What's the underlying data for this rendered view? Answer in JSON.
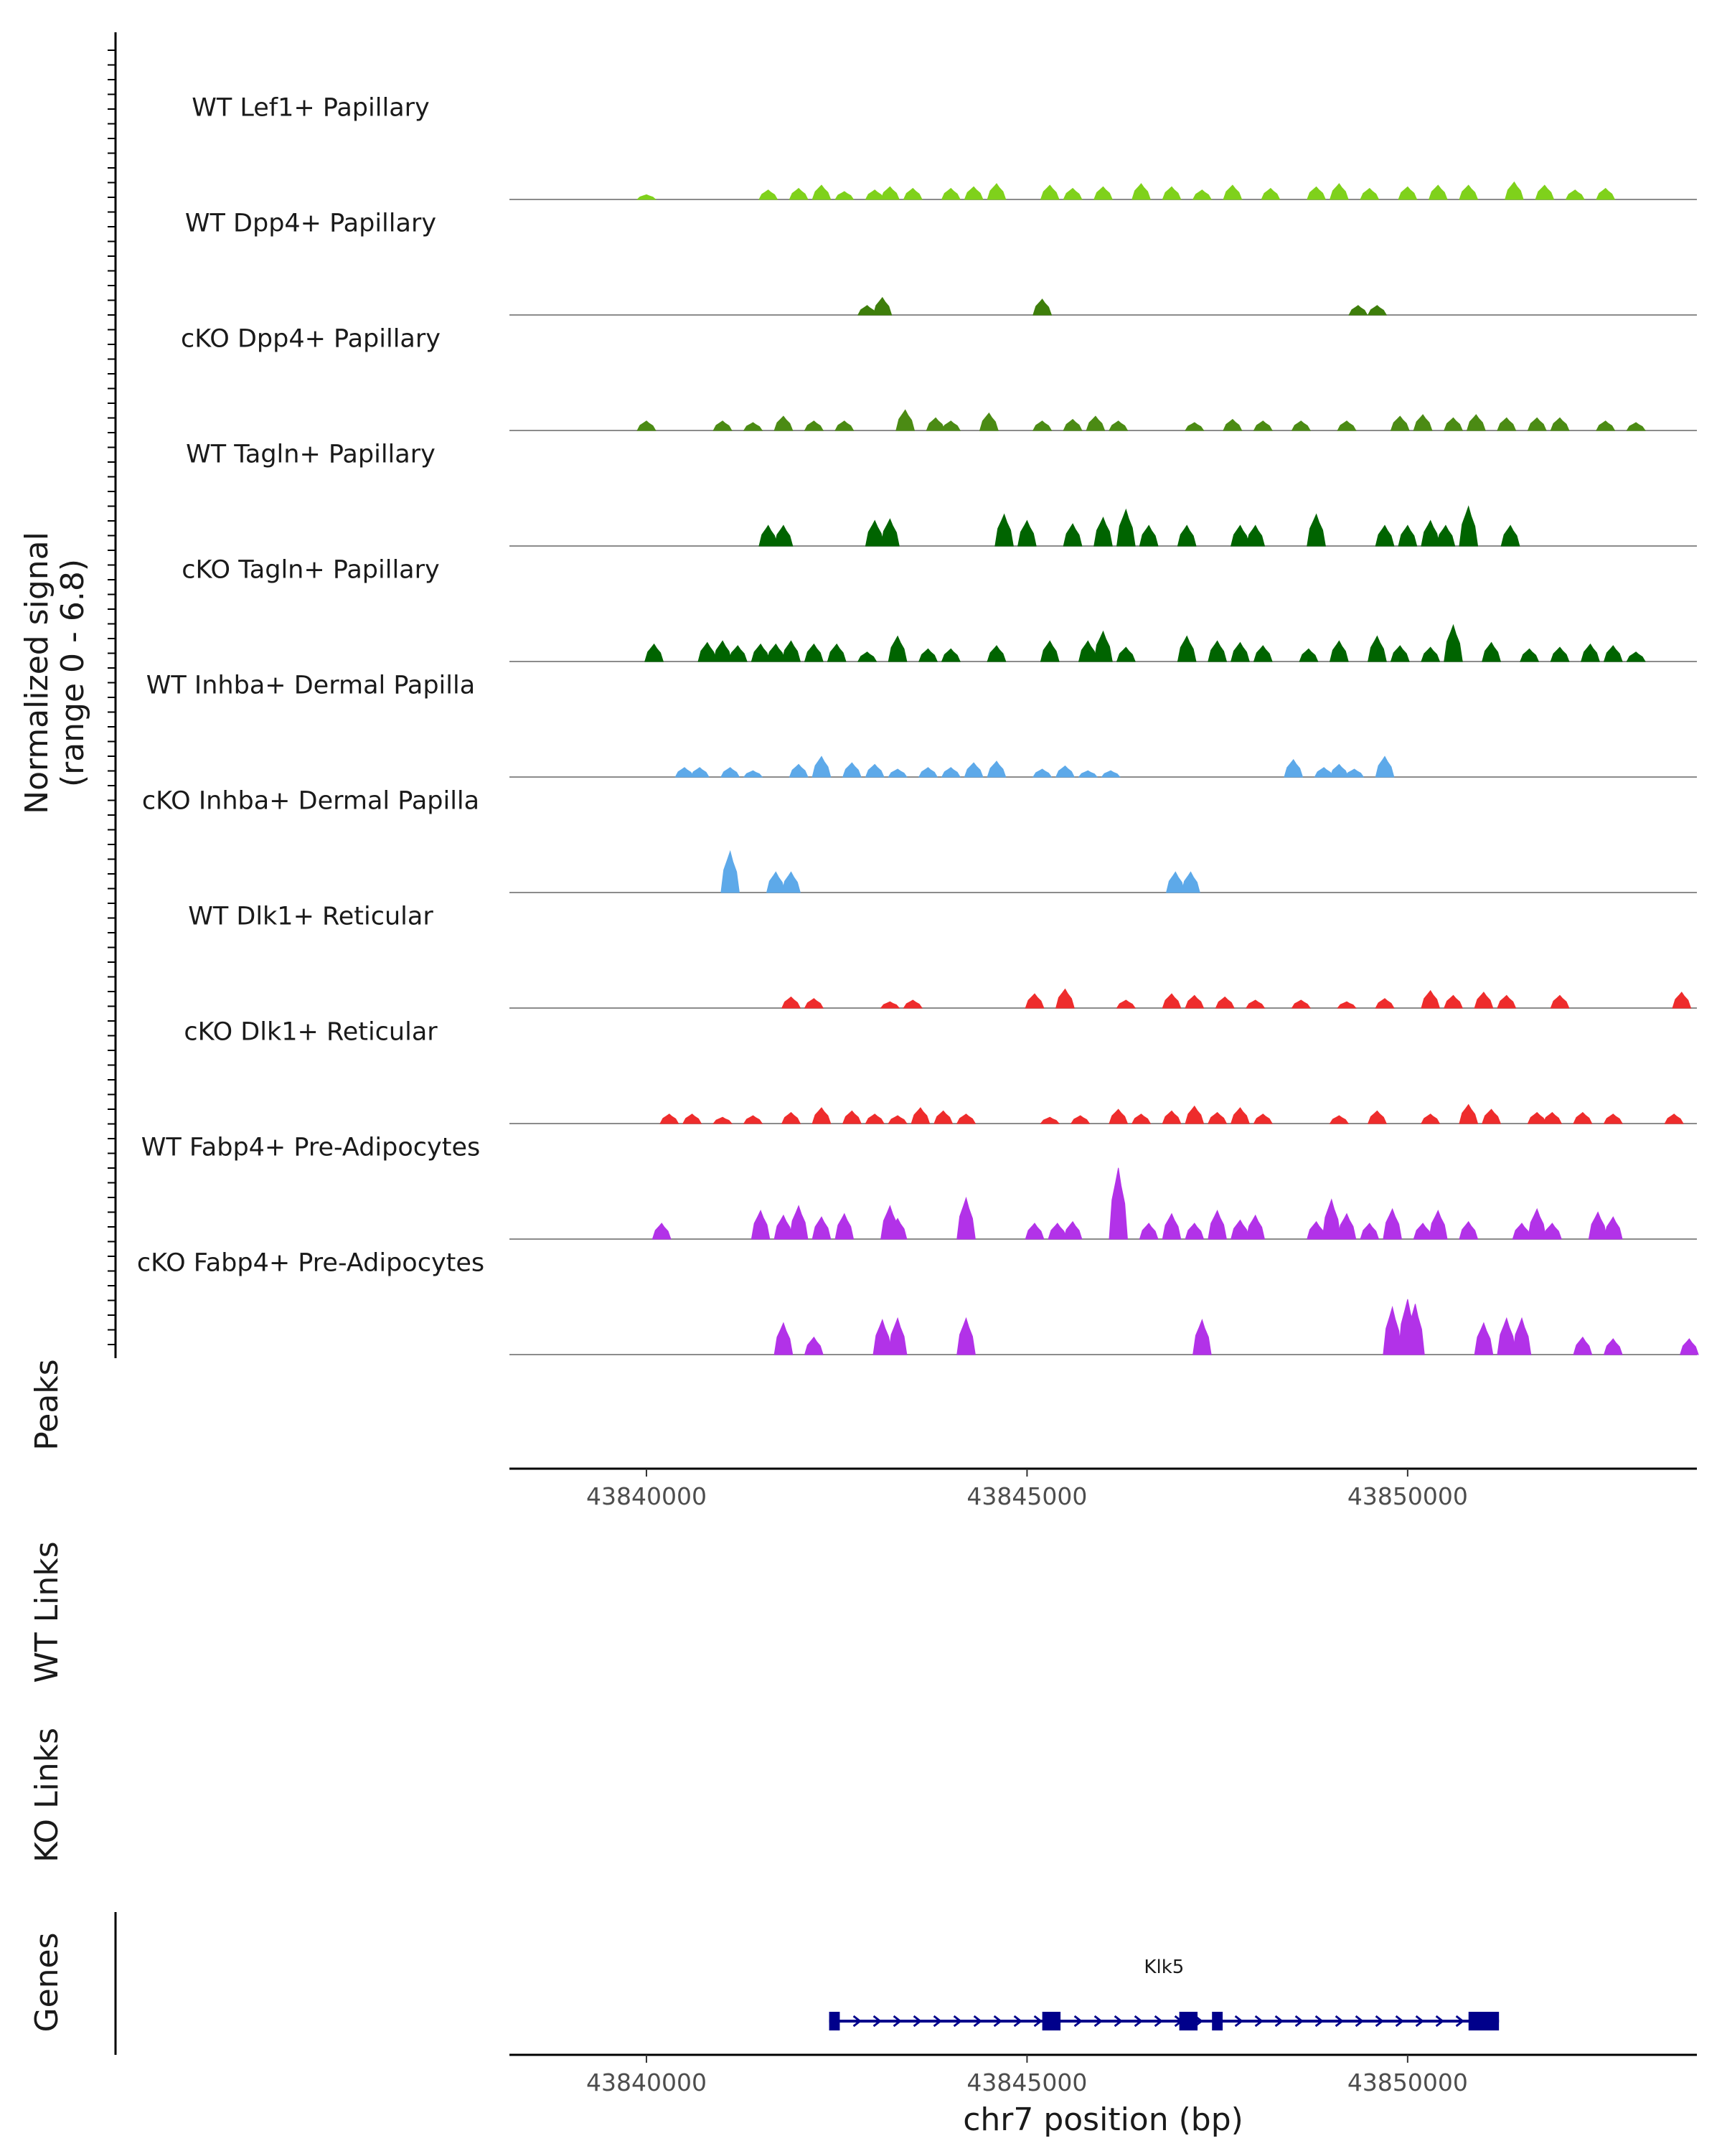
{
  "chart_data": {
    "type": "area",
    "chromosome": "chr7",
    "xlabel": "chr7 position (bp)",
    "xlim": [
      43838200,
      43853800
    ],
    "xticks": [
      43840000,
      43845000,
      43850000
    ],
    "xtick_labels": [
      "43840000",
      "43845000",
      "43850000"
    ],
    "ylabel_lines": [
      "Normalized signal",
      "(range 0 - 6.8)"
    ],
    "ylim": [
      0,
      6.8
    ],
    "grid": false,
    "series": [
      {
        "name": "WT Lef1+ Papillary",
        "color": "#7FD11B",
        "peaks": [
          [
            43840000,
            0.3
          ],
          [
            43841600,
            0.6
          ],
          [
            43842000,
            0.7
          ],
          [
            43842300,
            0.9
          ],
          [
            43842600,
            0.5
          ],
          [
            43843000,
            0.6
          ],
          [
            43843200,
            0.8
          ],
          [
            43843500,
            0.7
          ],
          [
            43844000,
            0.7
          ],
          [
            43844300,
            0.8
          ],
          [
            43844600,
            1.0
          ],
          [
            43845300,
            0.9
          ],
          [
            43845600,
            0.7
          ],
          [
            43846000,
            0.8
          ],
          [
            43846500,
            1.0
          ],
          [
            43846900,
            0.8
          ],
          [
            43847300,
            0.6
          ],
          [
            43847700,
            0.9
          ],
          [
            43848200,
            0.7
          ],
          [
            43848800,
            0.8
          ],
          [
            43849100,
            1.0
          ],
          [
            43849500,
            0.7
          ],
          [
            43850000,
            0.8
          ],
          [
            43850400,
            0.9
          ],
          [
            43850800,
            0.9
          ],
          [
            43851400,
            1.1
          ],
          [
            43851800,
            0.9
          ],
          [
            43852200,
            0.6
          ],
          [
            43852600,
            0.7
          ]
        ]
      },
      {
        "name": "WT Dpp4+ Papillary",
        "color": "#3E7E0B",
        "peaks": [
          [
            43842900,
            0.6
          ],
          [
            43843100,
            1.1
          ],
          [
            43845200,
            1.0
          ],
          [
            43849350,
            0.6
          ],
          [
            43849600,
            0.6
          ]
        ]
      },
      {
        "name": "cKO Dpp4+ Papillary",
        "color": "#4B8B14",
        "peaks": [
          [
            43840000,
            0.6
          ],
          [
            43841000,
            0.6
          ],
          [
            43841400,
            0.5
          ],
          [
            43841800,
            0.9
          ],
          [
            43842200,
            0.6
          ],
          [
            43842600,
            0.6
          ],
          [
            43843400,
            1.3
          ],
          [
            43843800,
            0.8
          ],
          [
            43844000,
            0.6
          ],
          [
            43844500,
            1.1
          ],
          [
            43845200,
            0.6
          ],
          [
            43845600,
            0.7
          ],
          [
            43845900,
            0.9
          ],
          [
            43846200,
            0.6
          ],
          [
            43847200,
            0.5
          ],
          [
            43847700,
            0.7
          ],
          [
            43848100,
            0.6
          ],
          [
            43848600,
            0.6
          ],
          [
            43849200,
            0.6
          ],
          [
            43849900,
            0.9
          ],
          [
            43850200,
            1.0
          ],
          [
            43850600,
            0.8
          ],
          [
            43850900,
            1.0
          ],
          [
            43851300,
            0.8
          ],
          [
            43851700,
            0.8
          ],
          [
            43852000,
            0.8
          ],
          [
            43852600,
            0.6
          ],
          [
            43853000,
            0.5
          ]
        ]
      },
      {
        "name": "WT Tagln+ Papillary",
        "color": "#006400",
        "peaks": [
          [
            43841600,
            1.3
          ],
          [
            43841800,
            1.3
          ],
          [
            43843000,
            1.6
          ],
          [
            43843200,
            1.7
          ],
          [
            43844700,
            2.0
          ],
          [
            43845000,
            1.6
          ],
          [
            43845600,
            1.4
          ],
          [
            43846000,
            1.8
          ],
          [
            43846300,
            2.3
          ],
          [
            43846600,
            1.3
          ],
          [
            43847100,
            1.3
          ],
          [
            43847800,
            1.3
          ],
          [
            43848000,
            1.3
          ],
          [
            43848800,
            2.0
          ],
          [
            43849700,
            1.3
          ],
          [
            43850000,
            1.3
          ],
          [
            43850300,
            1.6
          ],
          [
            43850500,
            1.3
          ],
          [
            43850800,
            2.5
          ],
          [
            43851350,
            1.3
          ]
        ]
      },
      {
        "name": "cKO Tagln+ Papillary",
        "color": "#006400",
        "peaks": [
          [
            43840100,
            1.1
          ],
          [
            43840800,
            1.2
          ],
          [
            43841000,
            1.3
          ],
          [
            43841200,
            1.0
          ],
          [
            43841500,
            1.1
          ],
          [
            43841700,
            1.1
          ],
          [
            43841900,
            1.3
          ],
          [
            43842200,
            1.1
          ],
          [
            43842500,
            1.1
          ],
          [
            43842900,
            0.6
          ],
          [
            43843300,
            1.6
          ],
          [
            43843700,
            0.8
          ],
          [
            43844000,
            0.8
          ],
          [
            43844600,
            1.0
          ],
          [
            43845300,
            1.3
          ],
          [
            43845800,
            1.3
          ],
          [
            43846000,
            1.9
          ],
          [
            43846300,
            0.9
          ],
          [
            43847100,
            1.6
          ],
          [
            43847500,
            1.3
          ],
          [
            43847800,
            1.2
          ],
          [
            43848100,
            1.0
          ],
          [
            43848700,
            0.8
          ],
          [
            43849100,
            1.3
          ],
          [
            43849600,
            1.6
          ],
          [
            43849900,
            1.0
          ],
          [
            43850300,
            0.9
          ],
          [
            43850600,
            2.3
          ],
          [
            43851100,
            1.2
          ],
          [
            43851600,
            0.8
          ],
          [
            43852000,
            0.9
          ],
          [
            43852400,
            1.1
          ],
          [
            43852700,
            1.0
          ],
          [
            43853000,
            0.6
          ]
        ]
      },
      {
        "name": "WT Inhba+ Dermal Papilla",
        "color": "#5DA9E9",
        "peaks": [
          [
            43840500,
            0.6
          ],
          [
            43840700,
            0.6
          ],
          [
            43841100,
            0.6
          ],
          [
            43841400,
            0.4
          ],
          [
            43842000,
            0.8
          ],
          [
            43842300,
            1.3
          ],
          [
            43842700,
            0.9
          ],
          [
            43843000,
            0.8
          ],
          [
            43843300,
            0.5
          ],
          [
            43843700,
            0.6
          ],
          [
            43844000,
            0.6
          ],
          [
            43844300,
            0.9
          ],
          [
            43844600,
            1.0
          ],
          [
            43845200,
            0.5
          ],
          [
            43845500,
            0.7
          ],
          [
            43845800,
            0.4
          ],
          [
            43846100,
            0.4
          ],
          [
            43848500,
            1.1
          ],
          [
            43848900,
            0.6
          ],
          [
            43849100,
            0.8
          ],
          [
            43849300,
            0.5
          ],
          [
            43849700,
            1.3
          ]
        ]
      },
      {
        "name": "cKO Inhba+ Dermal Papilla",
        "color": "#5DA9E9",
        "peaks": [
          [
            43841100,
            2.6
          ],
          [
            43841700,
            1.3
          ],
          [
            43841900,
            1.3
          ],
          [
            43846950,
            1.3
          ],
          [
            43847150,
            1.3
          ]
        ]
      },
      {
        "name": "WT Dlk1+ Reticular",
        "color": "#EE2C2C",
        "peaks": [
          [
            43841900,
            0.7
          ],
          [
            43842200,
            0.6
          ],
          [
            43843200,
            0.4
          ],
          [
            43843500,
            0.5
          ],
          [
            43845100,
            0.9
          ],
          [
            43845500,
            1.2
          ],
          [
            43846300,
            0.5
          ],
          [
            43846900,
            0.9
          ],
          [
            43847200,
            0.8
          ],
          [
            43847600,
            0.7
          ],
          [
            43848000,
            0.5
          ],
          [
            43848600,
            0.5
          ],
          [
            43849200,
            0.4
          ],
          [
            43849700,
            0.6
          ],
          [
            43850300,
            1.1
          ],
          [
            43850600,
            0.8
          ],
          [
            43851000,
            1.0
          ],
          [
            43851300,
            0.8
          ],
          [
            43852000,
            0.8
          ],
          [
            43853600,
            1.0
          ]
        ]
      },
      {
        "name": "cKO Dlk1+ Reticular",
        "color": "#EE2C2C",
        "peaks": [
          [
            43840300,
            0.6
          ],
          [
            43840600,
            0.6
          ],
          [
            43841000,
            0.4
          ],
          [
            43841400,
            0.5
          ],
          [
            43841900,
            0.7
          ],
          [
            43842300,
            1.0
          ],
          [
            43842700,
            0.8
          ],
          [
            43843000,
            0.6
          ],
          [
            43843300,
            0.5
          ],
          [
            43843600,
            1.0
          ],
          [
            43843900,
            0.8
          ],
          [
            43844200,
            0.6
          ],
          [
            43845300,
            0.4
          ],
          [
            43845700,
            0.5
          ],
          [
            43846200,
            0.9
          ],
          [
            43846500,
            0.6
          ],
          [
            43846900,
            0.8
          ],
          [
            43847200,
            1.1
          ],
          [
            43847500,
            0.7
          ],
          [
            43847800,
            1.0
          ],
          [
            43848100,
            0.6
          ],
          [
            43849100,
            0.5
          ],
          [
            43849600,
            0.8
          ],
          [
            43850300,
            0.6
          ],
          [
            43850800,
            1.2
          ],
          [
            43851100,
            0.9
          ],
          [
            43851700,
            0.7
          ],
          [
            43851900,
            0.7
          ],
          [
            43852300,
            0.7
          ],
          [
            43852700,
            0.6
          ],
          [
            43853500,
            0.6
          ]
        ]
      },
      {
        "name": "WT Fabp4+ Pre-Adipocytes",
        "color": "#B232E8",
        "peaks": [
          [
            43840200,
            1.0
          ],
          [
            43841500,
            1.8
          ],
          [
            43841800,
            1.5
          ],
          [
            43842000,
            2.1
          ],
          [
            43842300,
            1.4
          ],
          [
            43842600,
            1.6
          ],
          [
            43843200,
            2.1
          ],
          [
            43843300,
            1.3
          ],
          [
            43844200,
            2.6
          ],
          [
            43845100,
            1.0
          ],
          [
            43845400,
            1.0
          ],
          [
            43845600,
            1.1
          ],
          [
            43846200,
            4.5
          ],
          [
            43846600,
            1.0
          ],
          [
            43846900,
            1.6
          ],
          [
            43847200,
            1.0
          ],
          [
            43847500,
            1.8
          ],
          [
            43847800,
            1.2
          ],
          [
            43848000,
            1.5
          ],
          [
            43848800,
            1.1
          ],
          [
            43849000,
            2.5
          ],
          [
            43849200,
            1.6
          ],
          [
            43849500,
            1.0
          ],
          [
            43849800,
            1.9
          ],
          [
            43850200,
            1.0
          ],
          [
            43850400,
            1.8
          ],
          [
            43850800,
            1.1
          ],
          [
            43851500,
            1.0
          ],
          [
            43851700,
            1.9
          ],
          [
            43851900,
            1.0
          ],
          [
            43852500,
            1.7
          ],
          [
            43852700,
            1.4
          ]
        ]
      },
      {
        "name": "cKO Fabp4+ Pre-Adipocytes",
        "color": "#B232E8",
        "peaks": [
          [
            43841800,
            2.0
          ],
          [
            43842200,
            1.1
          ],
          [
            43843100,
            2.2
          ],
          [
            43843300,
            2.3
          ],
          [
            43844200,
            2.3
          ],
          [
            43847300,
            2.2
          ],
          [
            43849800,
            3.0
          ],
          [
            43850000,
            3.5
          ],
          [
            43850100,
            3.2
          ],
          [
            43851000,
            2.0
          ],
          [
            43851300,
            2.3
          ],
          [
            43851500,
            2.3
          ],
          [
            43852300,
            1.1
          ],
          [
            43852700,
            1.0
          ],
          [
            43853700,
            1.0
          ]
        ]
      }
    ],
    "empty_tracks": [
      "Peaks",
      "WT Links",
      "KO Links"
    ],
    "genes": [
      {
        "name": "Klk5",
        "start": 43842400,
        "end": 43851200,
        "strand": "+",
        "exons": [
          [
            43842400,
            43842540
          ],
          [
            43845200,
            43845440
          ],
          [
            43847000,
            43847240
          ],
          [
            43847430,
            43847570
          ],
          [
            43850800,
            43851200
          ]
        ]
      }
    ],
    "gene_track_label": "Genes"
  }
}
